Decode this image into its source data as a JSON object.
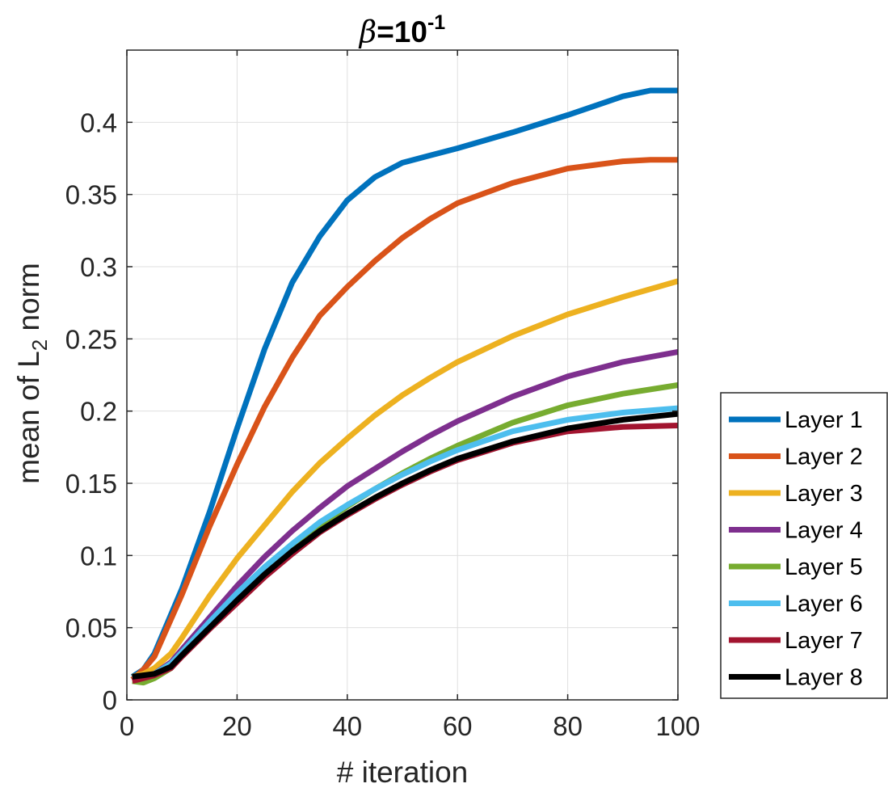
{
  "chart_data": {
    "type": "line",
    "title": {
      "symbol": "β",
      "base": "=10",
      "exponent": "-1"
    },
    "xlabel": "# iteration",
    "ylabel": {
      "prefix": "mean of L",
      "subscript": "2",
      "suffix": " norm"
    },
    "xlim": [
      0,
      100
    ],
    "ylim": [
      0,
      0.45
    ],
    "xticks": [
      0,
      20,
      40,
      60,
      80,
      100
    ],
    "xtick_labels": [
      "0",
      "20",
      "40",
      "60",
      "80",
      "100"
    ],
    "yticks": [
      0,
      0.05,
      0.1,
      0.15,
      0.2,
      0.25,
      0.3,
      0.35,
      0.4
    ],
    "ytick_labels": [
      "0",
      "0.05",
      "0.1",
      "0.15",
      "0.2",
      "0.25",
      "0.3",
      "0.35",
      "0.4"
    ],
    "grid": true,
    "legend_position": "outside-right-bottom",
    "series": [
      {
        "name": "Layer 1",
        "color": "#0072BD",
        "x": [
          1,
          3,
          5,
          10,
          15,
          20,
          25,
          30,
          35,
          40,
          45,
          50,
          55,
          60,
          70,
          80,
          90,
          95,
          100
        ],
        "y": [
          0.016,
          0.021,
          0.032,
          0.077,
          0.13,
          0.188,
          0.243,
          0.289,
          0.321,
          0.346,
          0.362,
          0.372,
          0.377,
          0.382,
          0.393,
          0.405,
          0.418,
          0.422,
          0.422
        ]
      },
      {
        "name": "Layer 2",
        "color": "#D95319",
        "x": [
          1,
          3,
          5,
          10,
          15,
          20,
          25,
          30,
          35,
          40,
          45,
          50,
          55,
          60,
          70,
          80,
          90,
          95,
          100
        ],
        "y": [
          0.014,
          0.021,
          0.03,
          0.073,
          0.12,
          0.163,
          0.203,
          0.237,
          0.266,
          0.286,
          0.304,
          0.32,
          0.333,
          0.344,
          0.358,
          0.368,
          0.373,
          0.374,
          0.374
        ]
      },
      {
        "name": "Layer 3",
        "color": "#EDB120",
        "x": [
          1,
          3,
          5,
          8,
          10,
          15,
          20,
          25,
          30,
          35,
          40,
          45,
          50,
          55,
          60,
          70,
          80,
          90,
          100
        ],
        "y": [
          0.016,
          0.018,
          0.022,
          0.032,
          0.043,
          0.072,
          0.098,
          0.121,
          0.144,
          0.164,
          0.181,
          0.197,
          0.211,
          0.223,
          0.234,
          0.252,
          0.267,
          0.279,
          0.29
        ]
      },
      {
        "name": "Layer 4",
        "color": "#7E2F8E",
        "x": [
          1,
          3,
          5,
          8,
          10,
          15,
          20,
          25,
          30,
          35,
          40,
          45,
          50,
          55,
          60,
          70,
          80,
          90,
          100
        ],
        "y": [
          0.016,
          0.016,
          0.018,
          0.026,
          0.035,
          0.057,
          0.079,
          0.099,
          0.117,
          0.133,
          0.148,
          0.16,
          0.172,
          0.183,
          0.193,
          0.21,
          0.224,
          0.234,
          0.241
        ]
      },
      {
        "name": "Layer 5",
        "color": "#77AC30",
        "x": [
          1,
          3,
          5,
          8,
          10,
          15,
          20,
          25,
          30,
          35,
          40,
          45,
          50,
          55,
          60,
          70,
          80,
          90,
          100
        ],
        "y": [
          0.013,
          0.012,
          0.015,
          0.022,
          0.032,
          0.052,
          0.072,
          0.09,
          0.106,
          0.121,
          0.134,
          0.146,
          0.157,
          0.167,
          0.176,
          0.192,
          0.204,
          0.212,
          0.218
        ]
      },
      {
        "name": "Layer 6",
        "color": "#4DBEEE",
        "x": [
          1,
          3,
          5,
          8,
          10,
          15,
          20,
          25,
          30,
          35,
          40,
          45,
          50,
          55,
          60,
          70,
          80,
          90,
          100
        ],
        "y": [
          0.016,
          0.016,
          0.018,
          0.025,
          0.033,
          0.054,
          0.074,
          0.092,
          0.108,
          0.123,
          0.135,
          0.146,
          0.156,
          0.165,
          0.173,
          0.186,
          0.194,
          0.199,
          0.202
        ]
      },
      {
        "name": "Layer 7",
        "color": "#A2142F",
        "x": [
          1,
          3,
          5,
          8,
          10,
          15,
          20,
          25,
          30,
          35,
          40,
          45,
          50,
          55,
          60,
          70,
          80,
          90,
          100
        ],
        "y": [
          0.013,
          0.015,
          0.017,
          0.022,
          0.03,
          0.049,
          0.067,
          0.085,
          0.101,
          0.116,
          0.128,
          0.139,
          0.149,
          0.158,
          0.166,
          0.178,
          0.186,
          0.189,
          0.19
        ]
      },
      {
        "name": "Layer 8",
        "color": "#000000",
        "x": [
          1,
          3,
          5,
          8,
          10,
          15,
          20,
          25,
          30,
          35,
          40,
          45,
          50,
          55,
          60,
          70,
          80,
          90,
          100
        ],
        "y": [
          0.016,
          0.017,
          0.018,
          0.023,
          0.031,
          0.05,
          0.069,
          0.087,
          0.103,
          0.117,
          0.129,
          0.14,
          0.15,
          0.159,
          0.167,
          0.179,
          0.188,
          0.194,
          0.198
        ]
      }
    ]
  }
}
